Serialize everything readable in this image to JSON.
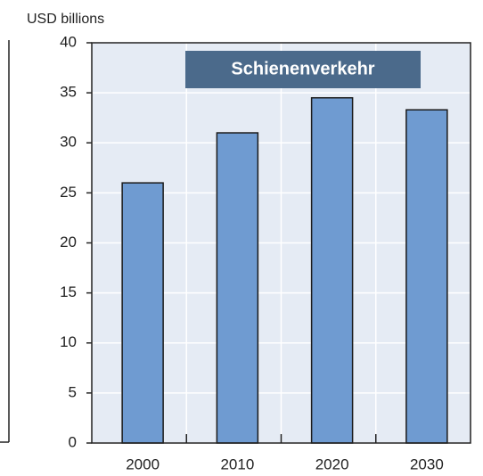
{
  "chart_data": {
    "type": "bar",
    "title": "Schienenverkehr",
    "y_label": "USD billions",
    "categories": [
      "2000",
      "2010",
      "2020",
      "2030"
    ],
    "values": [
      26,
      31,
      34.5,
      33.3
    ],
    "color": "#6f9bd1",
    "ylim": [
      0,
      40
    ],
    "yticks": [
      0,
      5,
      10,
      15,
      20,
      25,
      30,
      35,
      40
    ],
    "grid": true
  }
}
